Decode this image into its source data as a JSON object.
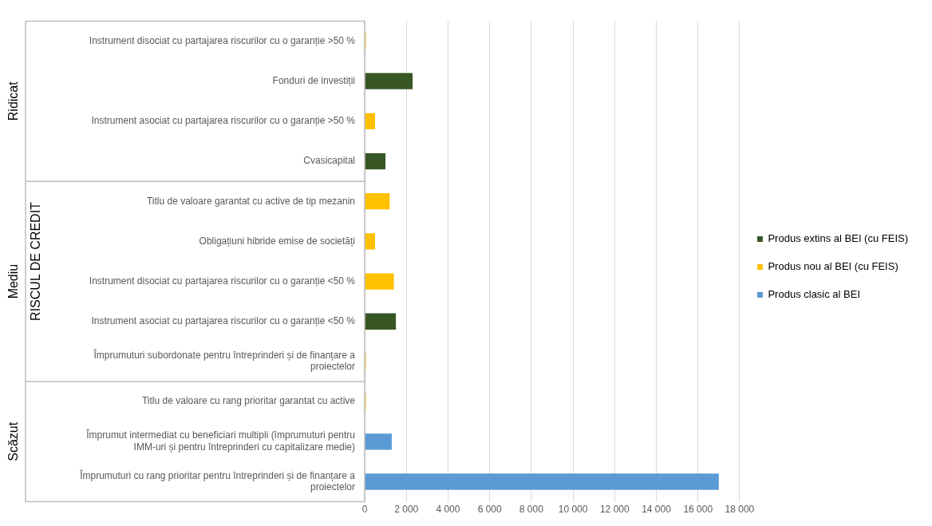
{
  "chart_data": {
    "type": "bar",
    "orientation": "horizontal",
    "ylabel": "RISCUL DE CREDIT",
    "categories": [
      "Instrument disociat cu partajarea riscurilor cu o garanție >50 %",
      "Fonduri de investiții",
      "Instrument asociat cu partajarea riscurilor cu o garanție >50 %",
      "Cvasicapital",
      "Titlu de valoare garantat cu active de tip mezanin",
      "Obligațiuni hibride emise de societăți",
      "Instrument disociat cu partajarea riscurilor cu o garanție <50 %",
      "Instrument asociat cu partajarea riscurilor cu o garanție <50 %",
      "Împrumuturi subordonate pentru întreprinderi și de finanțare a proiectelor",
      "Titlu de valoare cu rang prioritar garantat cu active",
      "Împrumut intermediat cu beneficiari multipli (împrumuturi pentru IMM-uri și pentru întreprinderi cu capitalizare medie)",
      "Împrumuturi cu rang prioritar pentru întreprinderi și de finanțare a proiectelor"
    ],
    "series": [
      {
        "name": "Produs extins al BEI (cu FEIS)",
        "color": "#375623",
        "values": [
          null,
          2300,
          null,
          1000,
          null,
          null,
          null,
          1500,
          null,
          null,
          null,
          null
        ]
      },
      {
        "name": "Produs nou al BEI (cu FEIS)",
        "color": "#ffc000",
        "values": [
          60,
          null,
          500,
          null,
          1200,
          500,
          1400,
          null,
          60,
          60,
          null,
          null
        ]
      },
      {
        "name": "Produs clasic al BEI",
        "color": "#5b9bd5",
        "values": [
          null,
          null,
          null,
          null,
          null,
          null,
          null,
          null,
          null,
          null,
          1300,
          17000
        ]
      }
    ],
    "xlim": [
      0,
      18000
    ],
    "xticks": [
      0,
      2000,
      4000,
      6000,
      8000,
      10000,
      12000,
      14000,
      16000,
      18000
    ],
    "grid": "x",
    "legend": "right",
    "annotations": [
      "Ridicat",
      "Mediu",
      "Scăzut"
    ]
  }
}
